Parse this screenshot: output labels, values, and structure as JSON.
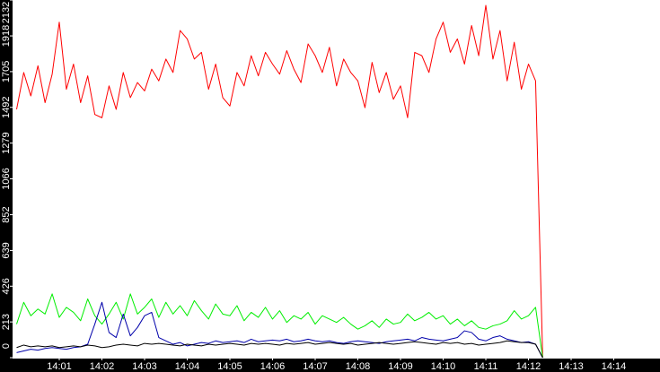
{
  "chart_data": {
    "type": "line",
    "categories": [
      null,
      null,
      null,
      null,
      null,
      null,
      "14:01",
      null,
      null,
      null,
      null,
      null,
      "14:02",
      null,
      null,
      null,
      null,
      null,
      "14:03",
      null,
      null,
      null,
      null,
      null,
      "14:04",
      null,
      null,
      null,
      null,
      null,
      "14:05",
      null,
      null,
      null,
      null,
      null,
      "14:06",
      null,
      null,
      null,
      null,
      null,
      "14:07",
      null,
      null,
      null,
      null,
      null,
      "14:08",
      null,
      null,
      null,
      null,
      null,
      "14:09",
      null,
      null,
      null,
      null,
      null,
      "14:10",
      null,
      null,
      null,
      null,
      null,
      "14:11",
      null,
      null,
      null,
      null,
      null,
      "14:12",
      null,
      null,
      null,
      null,
      null,
      "14:13",
      null,
      null,
      null,
      null,
      null,
      "14:14",
      null,
      null,
      null,
      null,
      null,
      null
    ],
    "series": [
      {
        "color": "#ff0000",
        "values": [
          1480,
          1700,
          1560,
          1740,
          1520,
          1690,
          2000,
          1600,
          1750,
          1520,
          1680,
          1450,
          1430,
          1620,
          1480,
          1700,
          1550,
          1640,
          1590,
          1720,
          1650,
          1780,
          1700,
          1950,
          1900,
          1780,
          1820,
          1600,
          1750,
          1550,
          1500,
          1700,
          1620,
          1800,
          1680,
          1820,
          1750,
          1690,
          1830,
          1720,
          1640,
          1870,
          1800,
          1700,
          1850,
          1620,
          1780,
          1700,
          1650,
          1490,
          1760,
          1580,
          1700,
          1540,
          1620,
          1430,
          1820,
          1800,
          1700,
          1900,
          2000,
          1820,
          1900,
          1750,
          1980,
          1800,
          2100,
          1780,
          1950,
          1650,
          1880,
          1600,
          1750,
          1650,
          0,
          null,
          null,
          null,
          null,
          null,
          null,
          null,
          null,
          null,
          null,
          null,
          null,
          null,
          null,
          null,
          null
        ]
      },
      {
        "color": "#00ee00",
        "values": [
          200,
          330,
          250,
          290,
          260,
          380,
          240,
          300,
          270,
          220,
          350,
          250,
          200,
          260,
          330,
          230,
          380,
          260,
          300,
          350,
          240,
          330,
          260,
          310,
          250,
          340,
          280,
          230,
          320,
          260,
          250,
          310,
          220,
          270,
          240,
          300,
          230,
          280,
          210,
          250,
          230,
          270,
          200,
          250,
          230,
          210,
          240,
          200,
          170,
          190,
          220,
          180,
          230,
          200,
          210,
          260,
          220,
          240,
          270,
          230,
          250,
          200,
          230,
          190,
          220,
          180,
          170,
          190,
          200,
          220,
          280,
          230,
          250,
          300,
          0,
          null,
          null,
          null,
          null,
          null,
          null,
          null,
          null,
          null,
          null,
          null,
          null,
          null,
          null,
          null,
          null
        ]
      },
      {
        "color": "#0000aa",
        "values": [
          30,
          40,
          50,
          45,
          55,
          60,
          55,
          50,
          60,
          65,
          80,
          200,
          330,
          150,
          120,
          260,
          130,
          180,
          250,
          270,
          120,
          100,
          80,
          90,
          70,
          80,
          90,
          85,
          100,
          90,
          95,
          100,
          90,
          110,
          95,
          100,
          105,
          100,
          110,
          95,
          100,
          110,
          100,
          95,
          100,
          90,
          85,
          95,
          100,
          95,
          90,
          85,
          95,
          100,
          105,
          110,
          100,
          120,
          110,
          105,
          100,
          110,
          120,
          160,
          150,
          110,
          100,
          120,
          130,
          110,
          100,
          90,
          95,
          80,
          0,
          null,
          null,
          null,
          null,
          null,
          null,
          null,
          null,
          null,
          null,
          null,
          null,
          null,
          null,
          null,
          null
        ]
      },
      {
        "color": "#000000",
        "values": [
          60,
          75,
          65,
          70,
          65,
          70,
          60,
          65,
          70,
          65,
          75,
          70,
          60,
          65,
          75,
          80,
          75,
          70,
          85,
          80,
          85,
          80,
          75,
          70,
          80,
          75,
          70,
          80,
          75,
          80,
          85,
          80,
          75,
          85,
          80,
          85,
          80,
          75,
          85,
          80,
          85,
          90,
          80,
          85,
          90,
          85,
          80,
          85,
          75,
          80,
          85,
          90,
          85,
          80,
          85,
          90,
          95,
          90,
          85,
          80,
          90,
          85,
          90,
          80,
          85,
          75,
          80,
          85,
          90,
          100,
          95,
          90,
          90,
          80,
          0,
          null,
          null,
          null,
          null,
          null,
          null,
          null,
          null,
          null,
          null,
          null,
          null,
          null,
          null,
          null,
          null
        ]
      }
    ],
    "ylim": [
      0,
      2132
    ],
    "yticks": [
      0,
      213,
      426,
      639,
      852,
      1066,
      1279,
      1492,
      1705,
      1918,
      2132
    ]
  }
}
